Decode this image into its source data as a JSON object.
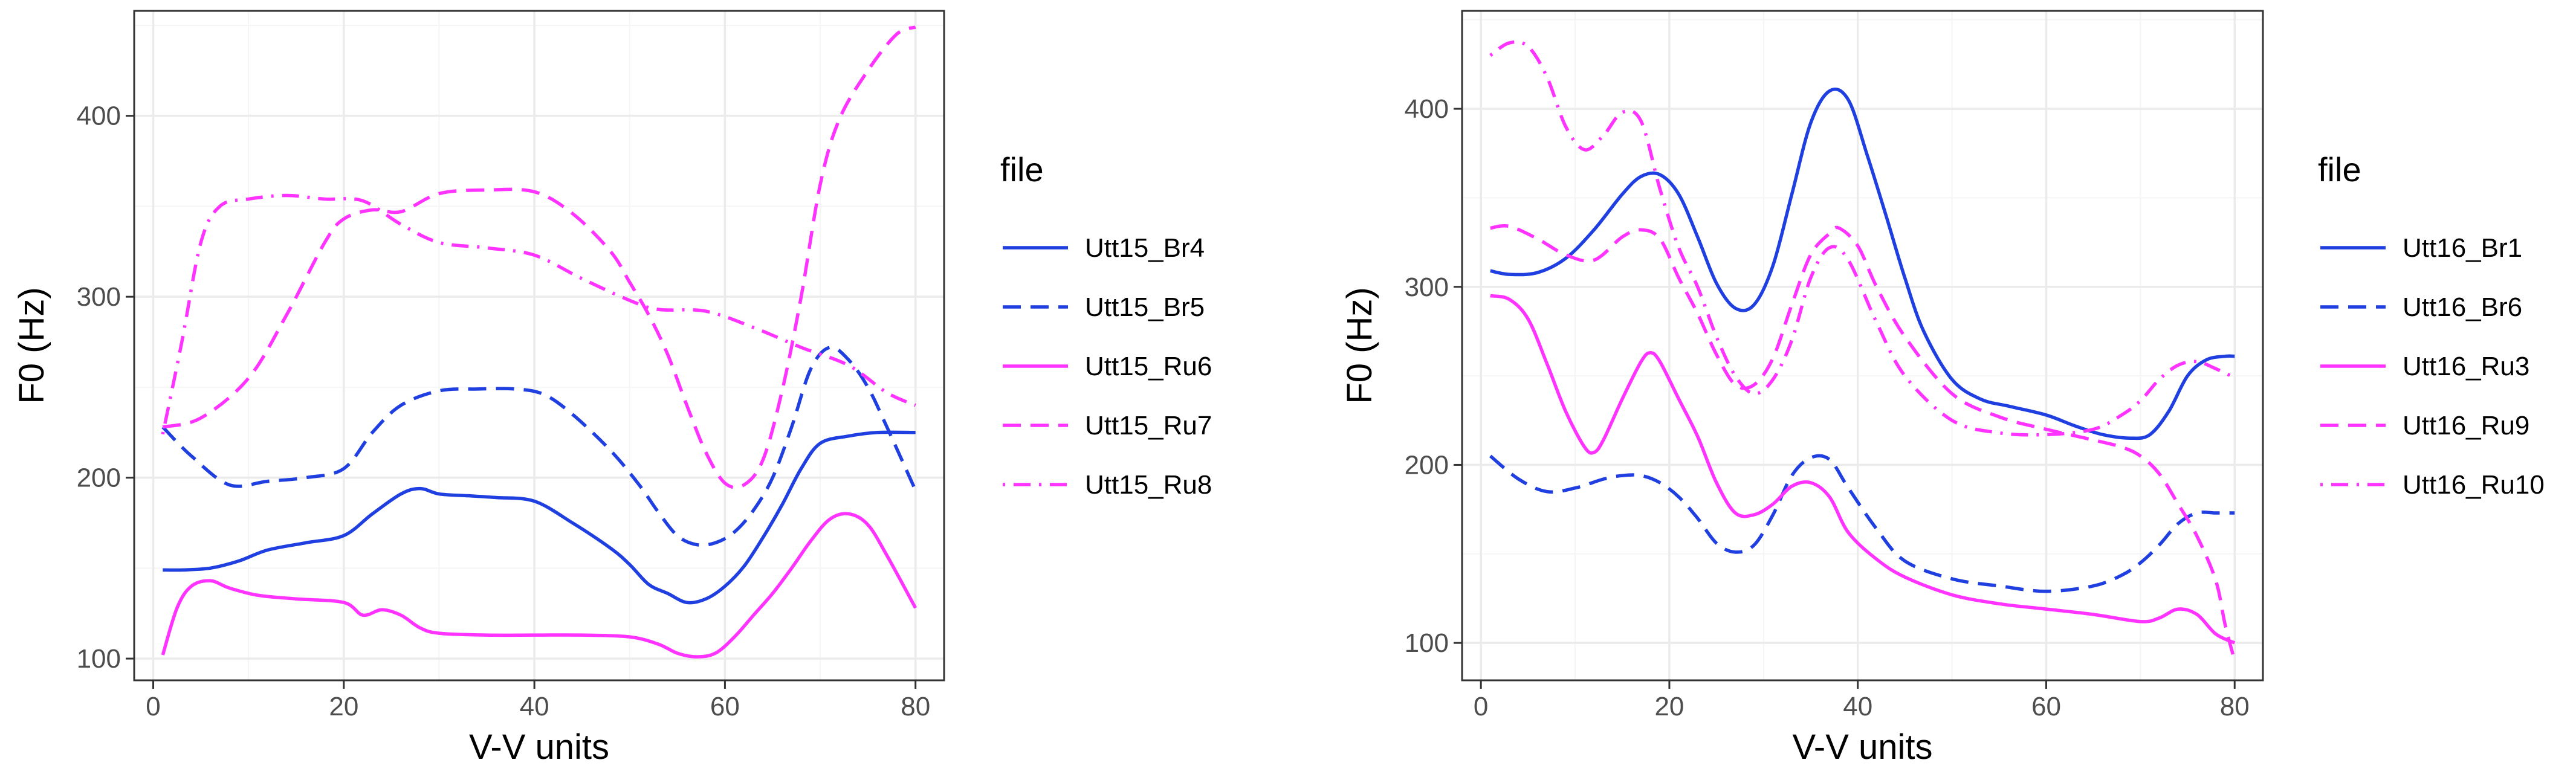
{
  "colors": {
    "Br": "#1f3fe0",
    "Ru": "#ff33ff",
    "grid_major": "#ebebeb",
    "grid_minor": "#f5f5f5",
    "panel_border": "#333333"
  },
  "chart_data": [
    {
      "type": "line",
      "xlabel": "V-V units",
      "ylabel": "F0 (Hz)",
      "xlim": [
        -2,
        83
      ],
      "ylim": [
        88,
        458
      ],
      "xticks": [
        0,
        20,
        40,
        60,
        80
      ],
      "yticks": [
        100,
        200,
        300,
        400
      ],
      "grid": true,
      "legend": {
        "title": "file",
        "position": "right"
      },
      "series": [
        {
          "name": "Utt15_Br4",
          "color": "#1f3fe0",
          "style": "solid",
          "x": [
            1,
            3,
            6,
            9,
            12,
            16,
            20,
            23,
            26,
            28,
            30,
            33,
            36,
            40,
            44,
            48,
            50,
            52,
            54,
            56,
            58,
            60,
            62,
            64,
            66,
            68,
            70,
            73,
            76,
            80
          ],
          "y": [
            149,
            149,
            150,
            154,
            160,
            164,
            168,
            180,
            191,
            194,
            191,
            190,
            189,
            187,
            175,
            161,
            152,
            141,
            136,
            131,
            133,
            140,
            151,
            167,
            185,
            205,
            219,
            223,
            225,
            225
          ]
        },
        {
          "name": "Utt15_Br5",
          "color": "#1f3fe0",
          "style": "dashed",
          "x": [
            1,
            4,
            8,
            12,
            16,
            20,
            23,
            26,
            30,
            34,
            38,
            41,
            44,
            48,
            51,
            53,
            55,
            57,
            59,
            61,
            63,
            65,
            67,
            69,
            71,
            73,
            75,
            77,
            80
          ],
          "y": [
            228,
            212,
            196,
            198,
            200,
            205,
            225,
            240,
            248,
            249,
            249,
            246,
            235,
            215,
            196,
            181,
            168,
            163,
            164,
            170,
            182,
            200,
            228,
            260,
            272,
            265,
            250,
            228,
            193
          ]
        },
        {
          "name": "Utt15_Ru6",
          "color": "#ff33ff",
          "style": "solid",
          "x": [
            1,
            2.5,
            4,
            6,
            8,
            11,
            15,
            20,
            22,
            24,
            26,
            28,
            30,
            35,
            40,
            45,
            50,
            53,
            55,
            57,
            59,
            61,
            63,
            65,
            67,
            69,
            71,
            73,
            75,
            77,
            80
          ],
          "y": [
            102,
            128,
            140,
            143,
            139,
            135,
            133,
            131,
            124,
            127,
            124,
            117,
            114,
            113,
            113,
            113,
            112,
            108,
            103,
            101,
            103,
            112,
            124,
            136,
            150,
            165,
            177,
            180,
            174,
            157,
            128
          ]
        },
        {
          "name": "Utt15_Ru7",
          "color": "#ff33ff",
          "style": "dashed",
          "x": [
            1,
            5,
            10,
            14,
            18,
            20,
            23,
            26,
            30,
            35,
            40,
            44,
            48,
            50,
            52,
            54,
            56,
            58,
            60,
            62,
            64,
            66,
            68,
            70,
            72,
            75,
            78,
            80
          ],
          "y": [
            228,
            233,
            255,
            290,
            330,
            343,
            348,
            347,
            357,
            359,
            358,
            346,
            325,
            308,
            290,
            268,
            240,
            214,
            197,
            196,
            210,
            248,
            300,
            362,
            398,
            425,
            445,
            449
          ]
        },
        {
          "name": "Utt15_Ru8",
          "color": "#ff33ff",
          "style": "dotdash",
          "x": [
            1,
            3,
            5,
            7,
            10,
            14,
            18,
            22,
            26,
            30,
            35,
            40,
            45,
            50,
            53,
            58,
            63,
            68,
            73,
            77,
            80
          ],
          "y": [
            224,
            275,
            330,
            350,
            354,
            356,
            354,
            353,
            340,
            330,
            327,
            323,
            310,
            298,
            293,
            292,
            283,
            272,
            262,
            247,
            240
          ]
        }
      ]
    },
    {
      "type": "line",
      "xlabel": "V-V units",
      "ylabel": "F0 (Hz)",
      "xlim": [
        -2,
        83
      ],
      "ylim": [
        79,
        455
      ],
      "xticks": [
        0,
        20,
        40,
        60,
        80
      ],
      "yticks": [
        100,
        200,
        300,
        400
      ],
      "grid": true,
      "legend": {
        "title": "file",
        "position": "right"
      },
      "series": [
        {
          "name": "Utt16_Br1",
          "color": "#1f3fe0",
          "style": "solid",
          "x": [
            1,
            3,
            6,
            9,
            12,
            15,
            17,
            19,
            21,
            23,
            25,
            27,
            29,
            31,
            33,
            35,
            37,
            39,
            41,
            43,
            45,
            47,
            50,
            53,
            56,
            60,
            63,
            66,
            69,
            71,
            73,
            75,
            77,
            79,
            80
          ],
          "y": [
            309,
            307,
            308,
            316,
            332,
            352,
            362,
            363,
            352,
            328,
            302,
            288,
            290,
            312,
            352,
            392,
            410,
            405,
            374,
            340,
            305,
            275,
            248,
            237,
            233,
            228,
            222,
            217,
            215,
            217,
            230,
            250,
            259,
            261,
            261
          ]
        },
        {
          "name": "Utt16_Br6",
          "color": "#1f3fe0",
          "style": "dashed",
          "x": [
            1,
            4,
            7,
            10,
            13,
            15,
            17,
            19,
            21,
            23,
            25,
            27,
            29,
            31,
            33,
            35,
            37,
            39,
            42,
            45,
            50,
            55,
            60,
            65,
            68,
            70,
            72,
            74,
            76,
            78,
            80
          ],
          "y": [
            205,
            192,
            185,
            187,
            192,
            194,
            194,
            190,
            182,
            170,
            156,
            151,
            155,
            172,
            194,
            204,
            203,
            187,
            164,
            146,
            136,
            132,
            129,
            132,
            138,
            145,
            155,
            167,
            173,
            173,
            173
          ]
        },
        {
          "name": "Utt16_Ru3",
          "color": "#ff33ff",
          "style": "solid",
          "x": [
            1,
            3,
            5,
            7,
            9,
            11,
            12,
            13,
            15,
            17,
            18,
            19,
            21,
            23,
            25,
            27,
            29,
            31,
            33,
            35,
            37,
            39,
            42,
            45,
            50,
            55,
            60,
            65,
            70,
            72,
            74,
            76,
            78,
            80
          ],
          "y": [
            295,
            293,
            282,
            257,
            230,
            210,
            207,
            214,
            237,
            258,
            263,
            258,
            237,
            216,
            190,
            173,
            172,
            178,
            188,
            190,
            182,
            162,
            147,
            137,
            127,
            122,
            119,
            116,
            112,
            114,
            119,
            116,
            105,
            100
          ]
        },
        {
          "name": "Utt16_Ru9",
          "color": "#ff33ff",
          "style": "dashed",
          "x": [
            1,
            3,
            6,
            9,
            12,
            15,
            17,
            19,
            21,
            23,
            25,
            27,
            29,
            31,
            33,
            35,
            37,
            38,
            40,
            42,
            45,
            50,
            55,
            60,
            65,
            68,
            70,
            72,
            74,
            76,
            78,
            79,
            80
          ],
          "y": [
            333,
            334,
            327,
            318,
            315,
            328,
            332,
            327,
            305,
            285,
            262,
            245,
            245,
            260,
            290,
            318,
            330,
            333,
            323,
            300,
            272,
            240,
            227,
            220,
            214,
            210,
            205,
            195,
            178,
            160,
            135,
            110,
            90
          ]
        },
        {
          "name": "Utt16_Ru10",
          "color": "#ff33ff",
          "style": "dotdash",
          "x": [
            1,
            3,
            5,
            7,
            9,
            11,
            13,
            15,
            17,
            19,
            21,
            23,
            25,
            27,
            29,
            31,
            33,
            35,
            37,
            39,
            42,
            45,
            50,
            55,
            60,
            65,
            68,
            70,
            72,
            74,
            76,
            78,
            80
          ],
          "y": [
            430,
            437,
            435,
            418,
            390,
            377,
            385,
            398,
            393,
            355,
            322,
            300,
            272,
            250,
            240,
            248,
            270,
            305,
            322,
            315,
            280,
            250,
            225,
            218,
            217,
            220,
            228,
            236,
            248,
            256,
            258,
            254,
            249
          ]
        }
      ]
    }
  ]
}
